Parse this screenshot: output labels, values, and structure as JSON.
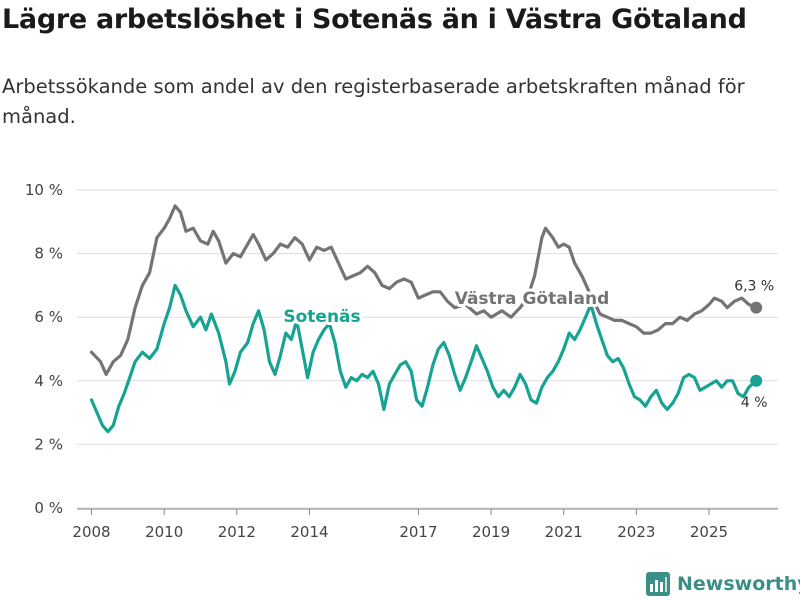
{
  "title": "Lägre arbetslöshet i Sotenäs än i Västra Götaland",
  "subtitle": "Arbetssökande som andel av den registerbaserade arbetskraften månad för månad.",
  "brand": "Newsworthy",
  "colors": {
    "vg": "#747474",
    "sotenas": "#16a394",
    "grid": "#dddddd",
    "brand": "#3a8f86"
  },
  "chart_data": {
    "type": "line",
    "title": "Lägre arbetslöshet i Sotenäs än i Västra Götaland",
    "xlabel": "",
    "ylabel": "",
    "xlim": [
      2007.6,
      2026.9
    ],
    "ylim": [
      0,
      10
    ],
    "y_ticks": [
      0,
      2,
      4,
      6,
      8,
      10
    ],
    "y_tick_labels": [
      "0 %",
      "2 %",
      "4 %",
      "6 %",
      "8 %",
      "10 %"
    ],
    "x_ticks": [
      2008,
      2010,
      2012,
      2014,
      2017,
      2019,
      2021,
      2023,
      2025
    ],
    "x_tick_labels": [
      "2008",
      "2010",
      "2012",
      "2014",
      "2017",
      "2019",
      "2021",
      "2023",
      "2025"
    ],
    "series": [
      {
        "name": "Västra Götaland",
        "label": "Västra Götaland",
        "color": "#747474",
        "end_label": "6,3 %",
        "points": [
          [
            2008.0,
            4.9
          ],
          [
            2008.25,
            4.6
          ],
          [
            2008.4,
            4.2
          ],
          [
            2008.6,
            4.6
          ],
          [
            2008.8,
            4.8
          ],
          [
            2009.0,
            5.3
          ],
          [
            2009.2,
            6.3
          ],
          [
            2009.4,
            7.0
          ],
          [
            2009.6,
            7.4
          ],
          [
            2009.8,
            8.5
          ],
          [
            2010.0,
            8.8
          ],
          [
            2010.15,
            9.1
          ],
          [
            2010.3,
            9.5
          ],
          [
            2010.45,
            9.3
          ],
          [
            2010.6,
            8.7
          ],
          [
            2010.8,
            8.8
          ],
          [
            2011.0,
            8.4
          ],
          [
            2011.2,
            8.3
          ],
          [
            2011.35,
            8.7
          ],
          [
            2011.5,
            8.4
          ],
          [
            2011.7,
            7.7
          ],
          [
            2011.9,
            8.0
          ],
          [
            2012.1,
            7.9
          ],
          [
            2012.3,
            8.3
          ],
          [
            2012.45,
            8.6
          ],
          [
            2012.6,
            8.3
          ],
          [
            2012.8,
            7.8
          ],
          [
            2013.0,
            8.0
          ],
          [
            2013.2,
            8.3
          ],
          [
            2013.4,
            8.2
          ],
          [
            2013.6,
            8.5
          ],
          [
            2013.8,
            8.3
          ],
          [
            2014.0,
            7.8
          ],
          [
            2014.2,
            8.2
          ],
          [
            2014.4,
            8.1
          ],
          [
            2014.6,
            8.2
          ],
          [
            2014.8,
            7.7
          ],
          [
            2015.0,
            7.2
          ],
          [
            2015.2,
            7.3
          ],
          [
            2015.4,
            7.4
          ],
          [
            2015.6,
            7.6
          ],
          [
            2015.8,
            7.4
          ],
          [
            2016.0,
            7.0
          ],
          [
            2016.2,
            6.9
          ],
          [
            2016.4,
            7.1
          ],
          [
            2016.6,
            7.2
          ],
          [
            2016.8,
            7.1
          ],
          [
            2017.0,
            6.6
          ],
          [
            2017.2,
            6.7
          ],
          [
            2017.4,
            6.8
          ],
          [
            2017.6,
            6.8
          ],
          [
            2017.8,
            6.5
          ],
          [
            2018.0,
            6.3
          ],
          [
            2018.3,
            6.4
          ],
          [
            2018.6,
            6.1
          ],
          [
            2018.8,
            6.2
          ],
          [
            2019.0,
            6.0
          ],
          [
            2019.3,
            6.2
          ],
          [
            2019.55,
            6.0
          ],
          [
            2019.8,
            6.3
          ],
          [
            2020.0,
            6.6
          ],
          [
            2020.2,
            7.3
          ],
          [
            2020.4,
            8.5
          ],
          [
            2020.5,
            8.8
          ],
          [
            2020.7,
            8.5
          ],
          [
            2020.85,
            8.2
          ],
          [
            2021.0,
            8.3
          ],
          [
            2021.15,
            8.2
          ],
          [
            2021.3,
            7.7
          ],
          [
            2021.5,
            7.3
          ],
          [
            2021.7,
            6.8
          ],
          [
            2022.0,
            6.1
          ],
          [
            2022.2,
            6.0
          ],
          [
            2022.4,
            5.9
          ],
          [
            2022.6,
            5.9
          ],
          [
            2022.8,
            5.8
          ],
          [
            2023.0,
            5.7
          ],
          [
            2023.2,
            5.5
          ],
          [
            2023.4,
            5.5
          ],
          [
            2023.6,
            5.6
          ],
          [
            2023.8,
            5.8
          ],
          [
            2024.0,
            5.8
          ],
          [
            2024.2,
            6.0
          ],
          [
            2024.4,
            5.9
          ],
          [
            2024.6,
            6.1
          ],
          [
            2024.8,
            6.2
          ],
          [
            2025.0,
            6.4
          ],
          [
            2025.15,
            6.6
          ],
          [
            2025.35,
            6.5
          ],
          [
            2025.5,
            6.3
          ],
          [
            2025.7,
            6.5
          ],
          [
            2025.9,
            6.6
          ],
          [
            2026.1,
            6.4
          ],
          [
            2026.3,
            6.3
          ]
        ]
      },
      {
        "name": "Sotenäs",
        "label": "Sotenäs",
        "color": "#16a394",
        "end_label": "4 %",
        "points": [
          [
            2008.0,
            3.4
          ],
          [
            2008.15,
            3.0
          ],
          [
            2008.3,
            2.6
          ],
          [
            2008.45,
            2.4
          ],
          [
            2008.6,
            2.6
          ],
          [
            2008.75,
            3.2
          ],
          [
            2008.9,
            3.6
          ],
          [
            2009.05,
            4.1
          ],
          [
            2009.2,
            4.6
          ],
          [
            2009.4,
            4.9
          ],
          [
            2009.6,
            4.7
          ],
          [
            2009.8,
            5.0
          ],
          [
            2010.0,
            5.8
          ],
          [
            2010.15,
            6.3
          ],
          [
            2010.3,
            7.0
          ],
          [
            2010.45,
            6.7
          ],
          [
            2010.6,
            6.2
          ],
          [
            2010.8,
            5.7
          ],
          [
            2011.0,
            6.0
          ],
          [
            2011.15,
            5.6
          ],
          [
            2011.3,
            6.1
          ],
          [
            2011.5,
            5.5
          ],
          [
            2011.7,
            4.6
          ],
          [
            2011.8,
            3.9
          ],
          [
            2011.95,
            4.3
          ],
          [
            2012.1,
            4.9
          ],
          [
            2012.3,
            5.2
          ],
          [
            2012.45,
            5.8
          ],
          [
            2012.6,
            6.2
          ],
          [
            2012.75,
            5.6
          ],
          [
            2012.9,
            4.6
          ],
          [
            2013.05,
            4.2
          ],
          [
            2013.2,
            4.8
          ],
          [
            2013.35,
            5.5
          ],
          [
            2013.5,
            5.3
          ],
          [
            2013.65,
            5.9
          ],
          [
            2013.8,
            5.0
          ],
          [
            2013.95,
            4.1
          ],
          [
            2014.1,
            4.9
          ],
          [
            2014.25,
            5.3
          ],
          [
            2014.4,
            5.6
          ],
          [
            2014.55,
            5.8
          ],
          [
            2014.7,
            5.2
          ],
          [
            2014.85,
            4.3
          ],
          [
            2015.0,
            3.8
          ],
          [
            2015.15,
            4.1
          ],
          [
            2015.3,
            4.0
          ],
          [
            2015.45,
            4.2
          ],
          [
            2015.6,
            4.1
          ],
          [
            2015.75,
            4.3
          ],
          [
            2015.9,
            3.9
          ],
          [
            2016.05,
            3.1
          ],
          [
            2016.2,
            3.9
          ],
          [
            2016.35,
            4.2
          ],
          [
            2016.5,
            4.5
          ],
          [
            2016.65,
            4.6
          ],
          [
            2016.8,
            4.3
          ],
          [
            2016.95,
            3.4
          ],
          [
            2017.1,
            3.2
          ],
          [
            2017.25,
            3.8
          ],
          [
            2017.4,
            4.5
          ],
          [
            2017.55,
            5.0
          ],
          [
            2017.7,
            5.2
          ],
          [
            2017.85,
            4.8
          ],
          [
            2018.0,
            4.2
          ],
          [
            2018.15,
            3.7
          ],
          [
            2018.3,
            4.1
          ],
          [
            2018.45,
            4.6
          ],
          [
            2018.6,
            5.1
          ],
          [
            2018.75,
            4.7
          ],
          [
            2018.9,
            4.3
          ],
          [
            2019.05,
            3.8
          ],
          [
            2019.2,
            3.5
          ],
          [
            2019.35,
            3.7
          ],
          [
            2019.5,
            3.5
          ],
          [
            2019.65,
            3.8
          ],
          [
            2019.8,
            4.2
          ],
          [
            2019.95,
            3.9
          ],
          [
            2020.1,
            3.4
          ],
          [
            2020.25,
            3.3
          ],
          [
            2020.4,
            3.8
          ],
          [
            2020.55,
            4.1
          ],
          [
            2020.7,
            4.3
          ],
          [
            2020.85,
            4.6
          ],
          [
            2021.0,
            5.0
          ],
          [
            2021.15,
            5.5
          ],
          [
            2021.3,
            5.3
          ],
          [
            2021.45,
            5.6
          ],
          [
            2021.6,
            6.0
          ],
          [
            2021.75,
            6.4
          ],
          [
            2021.9,
            5.8
          ],
          [
            2022.05,
            5.3
          ],
          [
            2022.2,
            4.8
          ],
          [
            2022.35,
            4.6
          ],
          [
            2022.5,
            4.7
          ],
          [
            2022.65,
            4.4
          ],
          [
            2022.8,
            3.9
          ],
          [
            2022.95,
            3.5
          ],
          [
            2023.1,
            3.4
          ],
          [
            2023.25,
            3.2
          ],
          [
            2023.4,
            3.5
          ],
          [
            2023.55,
            3.7
          ],
          [
            2023.7,
            3.3
          ],
          [
            2023.85,
            3.1
          ],
          [
            2024.0,
            3.3
          ],
          [
            2024.15,
            3.6
          ],
          [
            2024.3,
            4.1
          ],
          [
            2024.45,
            4.2
          ],
          [
            2024.6,
            4.1
          ],
          [
            2024.75,
            3.7
          ],
          [
            2024.9,
            3.8
          ],
          [
            2025.05,
            3.9
          ],
          [
            2025.2,
            4.0
          ],
          [
            2025.35,
            3.8
          ],
          [
            2025.5,
            4.0
          ],
          [
            2025.65,
            4.0
          ],
          [
            2025.8,
            3.6
          ],
          [
            2025.95,
            3.5
          ],
          [
            2026.1,
            3.8
          ],
          [
            2026.3,
            4.0
          ]
        ]
      }
    ]
  }
}
